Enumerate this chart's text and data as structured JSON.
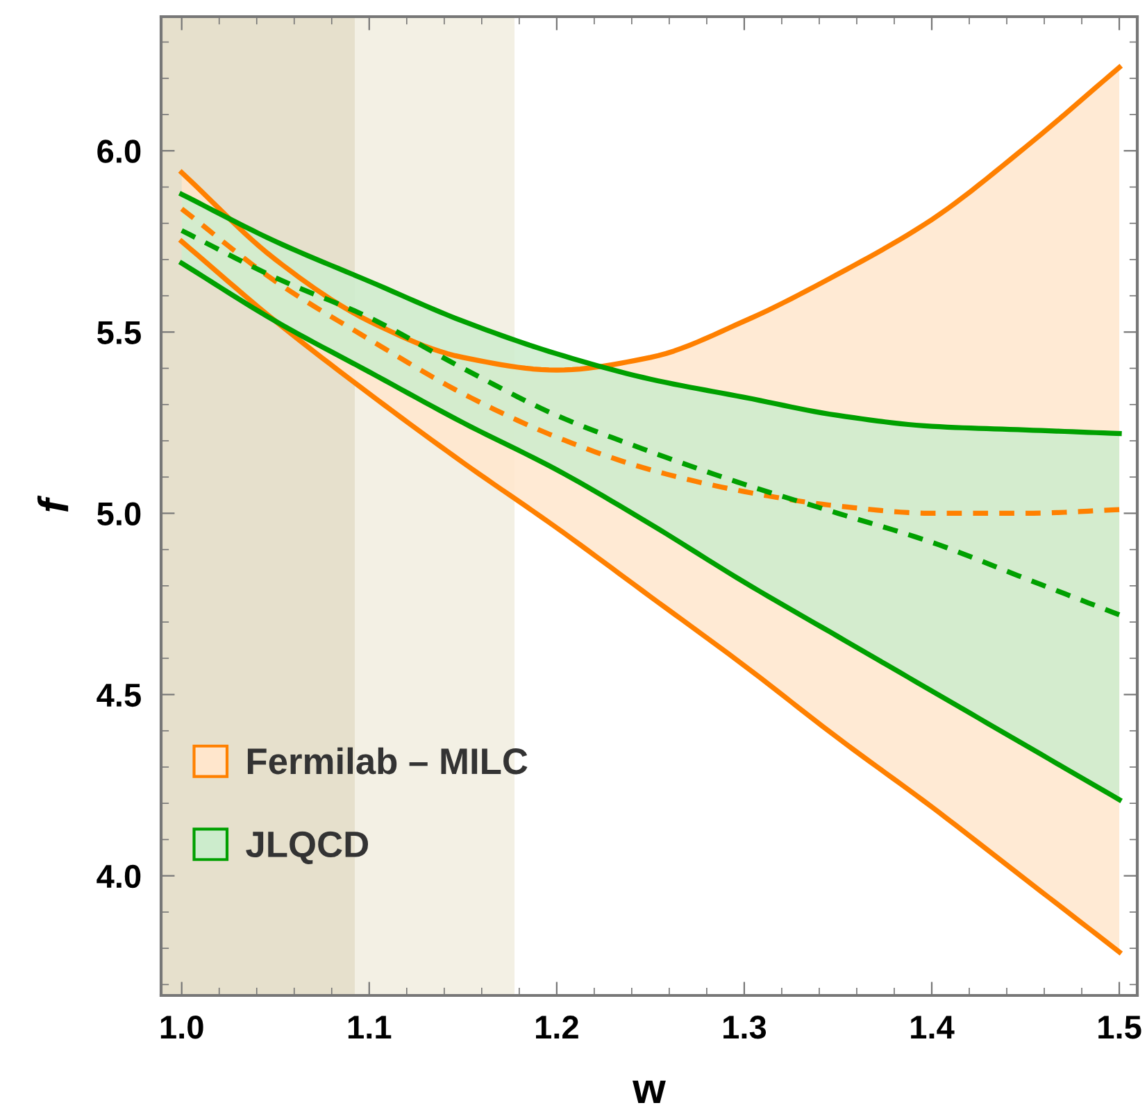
{
  "chart_data": {
    "type": "line",
    "xlabel": "w",
    "ylabel": "f",
    "xlim": [
      0.989,
      1.5096
    ],
    "ylim": [
      3.67,
      6.37
    ],
    "xticks": [
      {
        "value": 1.0,
        "label": "1.0"
      },
      {
        "value": 1.1,
        "label": "1.1"
      },
      {
        "value": 1.2,
        "label": "1.2"
      },
      {
        "value": 1.3,
        "label": "1.3"
      },
      {
        "value": 1.4,
        "label": "1.4"
      },
      {
        "value": 1.5,
        "label": "1.5"
      }
    ],
    "yticks": [
      {
        "value": 4.0,
        "label": "4.0"
      },
      {
        "value": 4.5,
        "label": "4.5"
      },
      {
        "value": 5.0,
        "label": "5.0"
      },
      {
        "value": 5.5,
        "label": "5.5"
      },
      {
        "value": 6.0,
        "label": "6.0"
      }
    ],
    "grid": false,
    "legend": "bottom left",
    "marker": "none",
    "bands": [
      {
        "axis": "x",
        "from": 0.989,
        "to": 1.0925,
        "color": "#e6e0cc"
      },
      {
        "axis": "x",
        "from": 1.0925,
        "to": 1.1775,
        "color": "#f3f0e4"
      }
    ],
    "series": [
      {
        "name": "Fermilab – MILC",
        "color": "#ff8000",
        "line_style": "dashed",
        "x": [
          1.0,
          1.05,
          1.1,
          1.15,
          1.2,
          1.25,
          1.3,
          1.35,
          1.4,
          1.45,
          1.5
        ],
        "values": [
          5.84,
          5.64,
          5.48,
          5.33,
          5.21,
          5.12,
          5.06,
          5.02,
          5.0,
          5.0,
          5.01
        ],
        "lower": [
          5.75,
          5.53,
          5.33,
          5.14,
          4.96,
          4.77,
          4.58,
          4.38,
          4.19,
          3.99,
          3.79
        ],
        "upper": [
          5.94,
          5.7,
          5.53,
          5.43,
          5.395,
          5.43,
          5.53,
          5.66,
          5.81,
          6.01,
          6.23
        ]
      },
      {
        "color": "#ff8000",
        "line_style": "solid",
        "x": [
          1.0,
          1.05,
          1.1,
          1.15,
          1.2,
          1.25,
          1.3,
          1.35,
          1.4,
          1.45,
          1.5
        ],
        "values": [
          5.75,
          5.53,
          5.33,
          5.14,
          4.96,
          4.77,
          4.58,
          4.38,
          4.19,
          3.99,
          3.79
        ]
      },
      {
        "color": "#ff8000",
        "line_style": "solid",
        "x": [
          1.0,
          1.05,
          1.1,
          1.15,
          1.2,
          1.25,
          1.3,
          1.35,
          1.4,
          1.45,
          1.5
        ],
        "values": [
          5.94,
          5.7,
          5.53,
          5.43,
          5.395,
          5.43,
          5.53,
          5.66,
          5.81,
          6.01,
          6.23
        ]
      },
      {
        "name": "JLQCD",
        "color": "#00a000",
        "line_style": "dashed",
        "x": [
          1.0,
          1.05,
          1.1,
          1.15,
          1.2,
          1.25,
          1.3,
          1.35,
          1.4,
          1.45,
          1.5
        ],
        "values": [
          5.78,
          5.65,
          5.54,
          5.4,
          5.27,
          5.17,
          5.08,
          5.0,
          4.92,
          4.82,
          4.72
        ],
        "lower": [
          5.69,
          5.53,
          5.39,
          5.25,
          5.12,
          4.97,
          4.81,
          4.66,
          4.51,
          4.36,
          4.21
        ],
        "upper": [
          5.88,
          5.75,
          5.64,
          5.53,
          5.44,
          5.37,
          5.32,
          5.27,
          5.24,
          5.23,
          5.22
        ]
      },
      {
        "color": "#00a000",
        "line_style": "solid",
        "x": [
          1.0,
          1.05,
          1.1,
          1.15,
          1.2,
          1.25,
          1.3,
          1.35,
          1.4,
          1.45,
          1.5
        ],
        "values": [
          5.69,
          5.53,
          5.39,
          5.25,
          5.12,
          4.97,
          4.81,
          4.66,
          4.51,
          4.36,
          4.21
        ]
      },
      {
        "color": "#00a000",
        "line_style": "solid",
        "x": [
          1.0,
          1.05,
          1.1,
          1.15,
          1.2,
          1.25,
          1.3,
          1.35,
          1.4,
          1.45,
          1.5
        ],
        "values": [
          5.88,
          5.75,
          5.64,
          5.53,
          5.44,
          5.37,
          5.32,
          5.27,
          5.24,
          5.23,
          5.22
        ]
      }
    ]
  }
}
